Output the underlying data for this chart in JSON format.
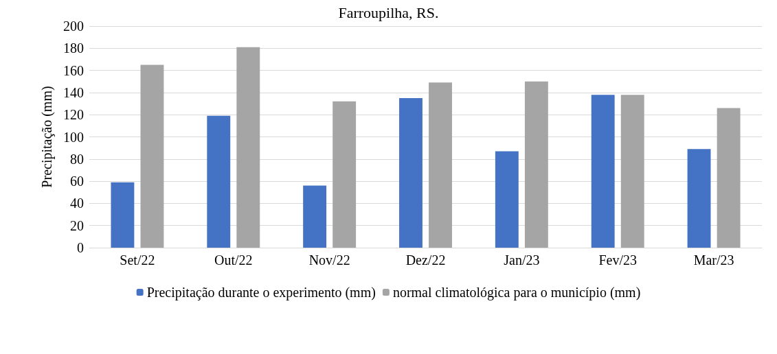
{
  "chart_data": {
    "type": "bar",
    "title": "Farroupilha, RS.",
    "ylabel": "Precipitação (mm)",
    "categories": [
      "Set/22",
      "Out/22",
      "Nov/22",
      "Dez/22",
      "Jan/23",
      "Fev/23",
      "Mar/23"
    ],
    "series": [
      {
        "name": "Precipitação durante o experimento (mm)",
        "color": "#4472c4",
        "values": [
          59,
          119,
          56,
          135,
          87,
          138,
          89
        ]
      },
      {
        "name": "normal climatológica para o município (mm)",
        "color": "#a5a5a5",
        "values": [
          165,
          181,
          132,
          149,
          150,
          138,
          126
        ]
      }
    ],
    "ylim": [
      0,
      200
    ],
    "yticks": [
      0,
      20,
      40,
      60,
      80,
      100,
      120,
      140,
      160,
      180,
      200
    ],
    "grid": "y",
    "legend": "bottom"
  }
}
